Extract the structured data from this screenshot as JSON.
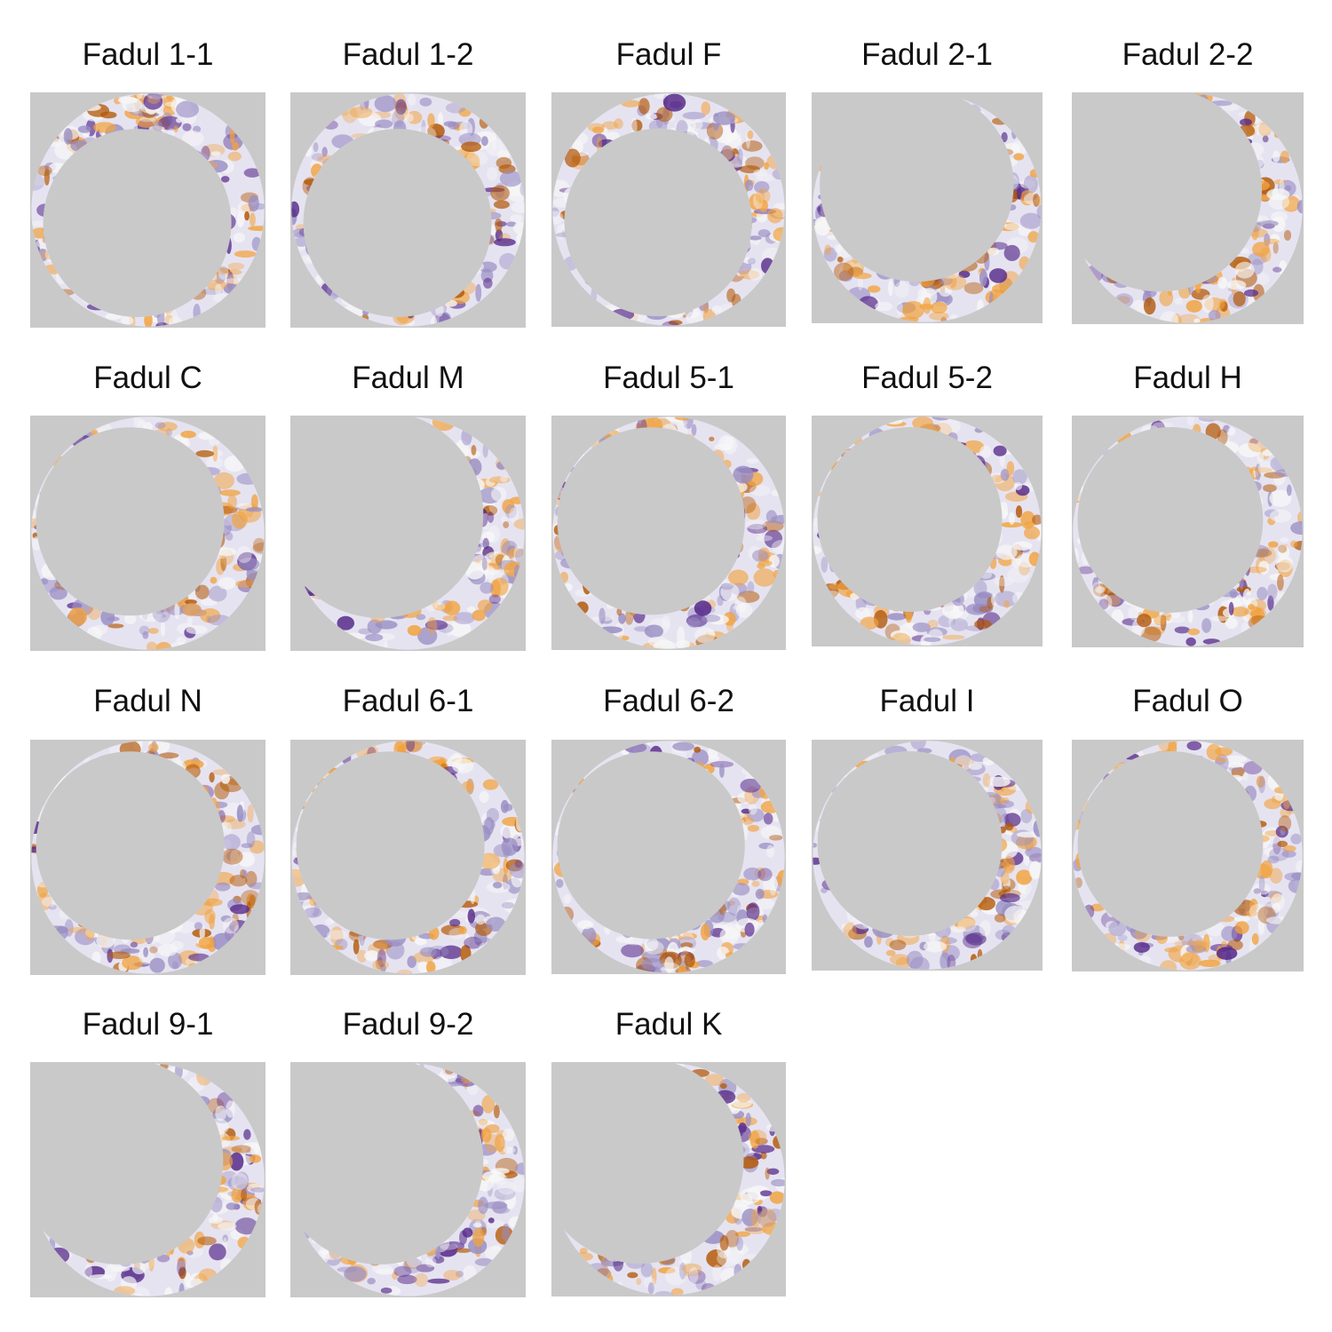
{
  "colors": {
    "background": "#c9c9c9",
    "high": "#b35806",
    "mid_high": "#f1a340",
    "neutral": "#f7f7f7",
    "mid_low": "#998ec3",
    "low": "#542788"
  },
  "panels": [
    {
      "title": "Fadul 1-1",
      "shape": "full-ring"
    },
    {
      "title": "Fadul 1-2",
      "shape": "full-ring"
    },
    {
      "title": "Fadul F",
      "shape": "full-ring"
    },
    {
      "title": "Fadul 2-1",
      "shape": "ring-thick-bottom"
    },
    {
      "title": "Fadul 2-2",
      "shape": "crescent"
    },
    {
      "title": "Fadul C",
      "shape": "ring-thick-right"
    },
    {
      "title": "Fadul M",
      "shape": "crescent"
    },
    {
      "title": "Fadul 5-1",
      "shape": "ring-thick-right"
    },
    {
      "title": "Fadul 5-2",
      "shape": "ring-thick-right"
    },
    {
      "title": "Fadul H",
      "shape": "ring-thick-right"
    },
    {
      "title": "Fadul N",
      "shape": "ring-thick-right"
    },
    {
      "title": "Fadul 6-1",
      "shape": "ring-thick-right"
    },
    {
      "title": "Fadul 6-2",
      "shape": "ring-thick-right"
    },
    {
      "title": "Fadul I",
      "shape": "ring-thick-right"
    },
    {
      "title": "Fadul O",
      "shape": "ring-thick-right"
    },
    {
      "title": "Fadul 9-1",
      "shape": "crescent"
    },
    {
      "title": "Fadul 9-2",
      "shape": "crescent"
    },
    {
      "title": "Fadul K",
      "shape": "crescent"
    }
  ]
}
